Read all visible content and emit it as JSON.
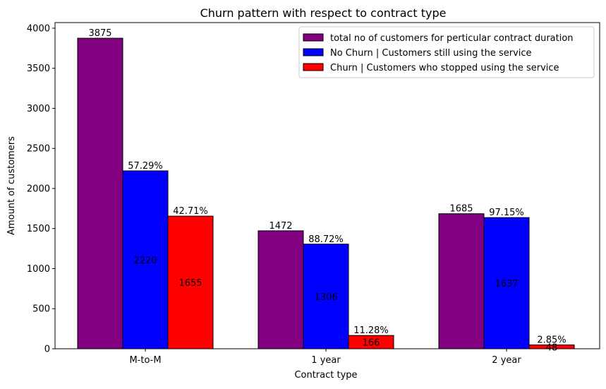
{
  "chart_data": {
    "type": "bar",
    "title": "Churn pattern with respect to contract type",
    "xlabel": "Contract type",
    "ylabel": "Amount of customers",
    "categories": [
      "M-to-M",
      "1 year",
      "2 year"
    ],
    "ylim": [
      0,
      4070
    ],
    "yticks": [
      0,
      500,
      1000,
      1500,
      2000,
      2500,
      3000,
      3500,
      4000
    ],
    "grid": false,
    "legend_position": "top-right",
    "series": [
      {
        "name": "total no of customers for perticular contract duration",
        "color": "#800080",
        "values": [
          3875,
          1472,
          1685
        ],
        "top_labels": [
          "3875",
          "1472",
          "1685"
        ],
        "mid_labels": [
          "",
          "",
          ""
        ]
      },
      {
        "name": "No Churn | Customers still using the service",
        "color": "#0000ff",
        "values": [
          2220,
          1306,
          1637
        ],
        "top_labels": [
          "57.29%",
          "88.72%",
          "97.15%"
        ],
        "mid_labels": [
          "2220",
          "1306",
          "1637"
        ]
      },
      {
        "name": "Churn | Customers who stopped using the service",
        "color": "#ff0000",
        "values": [
          1655,
          166,
          48
        ],
        "top_labels": [
          "42.71%",
          "11.28%",
          "2.85%"
        ],
        "mid_labels": [
          "1655",
          "166",
          "48"
        ]
      }
    ]
  }
}
